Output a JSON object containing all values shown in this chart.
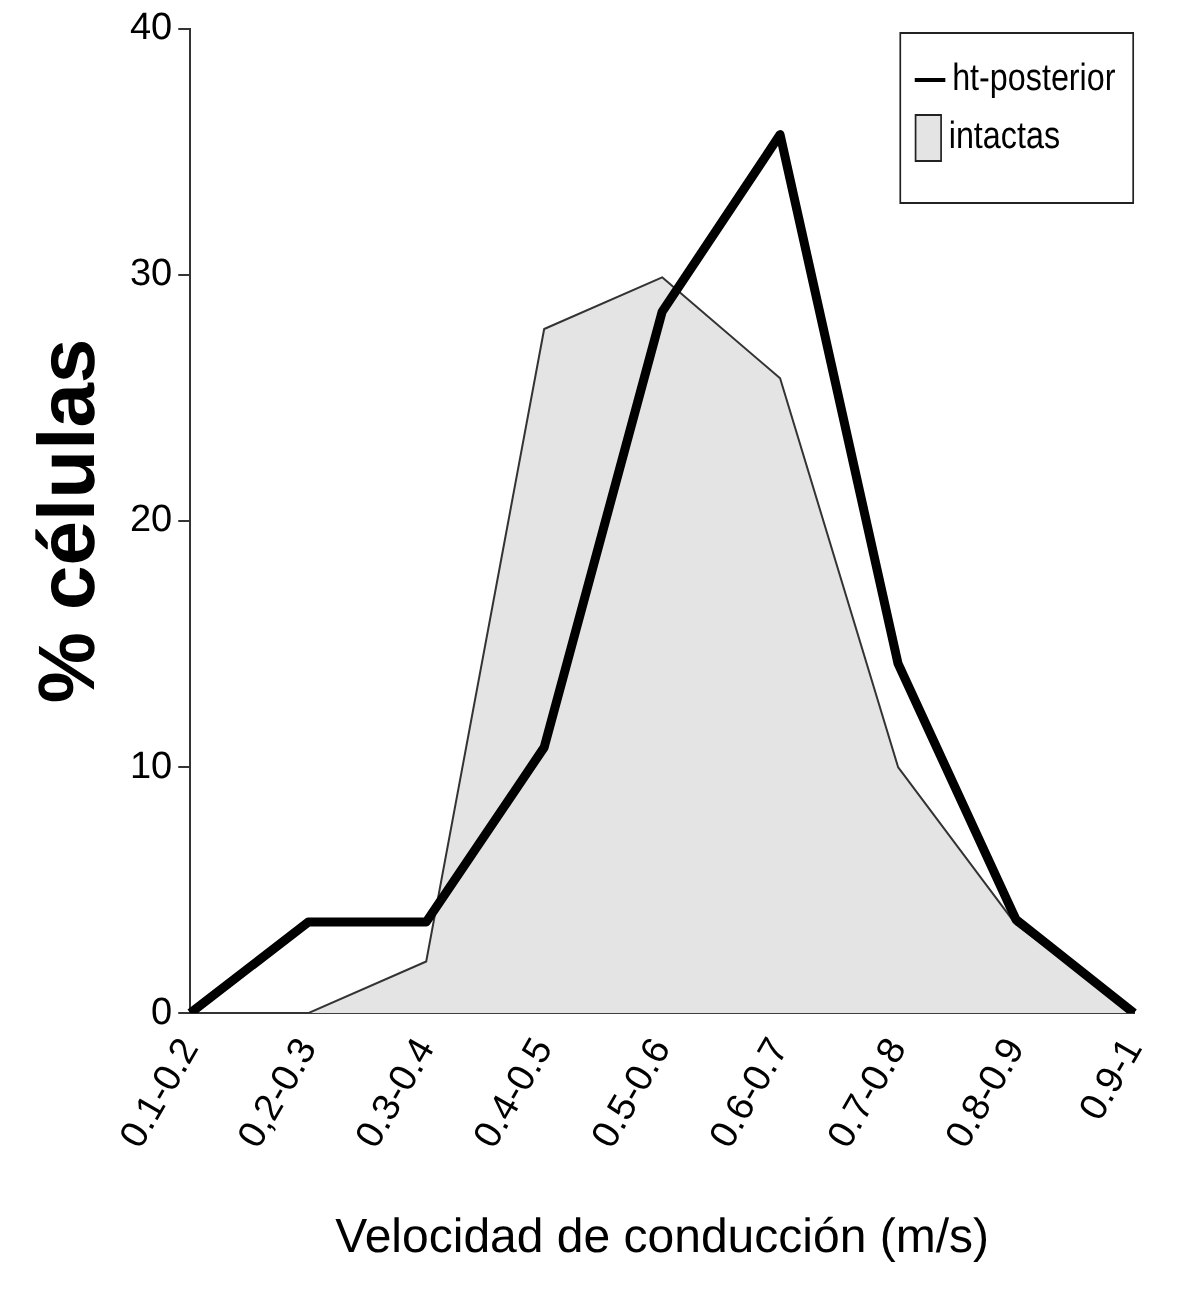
{
  "chart_data": {
    "type": "line",
    "xlabel": "Velocidad de conducción (m/s)",
    "ylabel": "% células",
    "categories": [
      "0.1-0.2",
      "0,2-0.3",
      "0.3-0.4",
      "0.4-0.5",
      "0.5-0.6",
      "0.6-0.7",
      "0.7-0.8",
      "0.8-0.9",
      "0.9-1"
    ],
    "ylim": [
      0,
      40
    ],
    "yticks": [
      0,
      10,
      20,
      30,
      40
    ],
    "grid": false,
    "legend": "top right",
    "marker": "none",
    "series": [
      {
        "name": "ht-posterior",
        "color": "#000000",
        "values": [
          0,
          3.7,
          3.7,
          10.8,
          28.5,
          35.7,
          14.2,
          3.8,
          0
        ]
      },
      {
        "name": "intactas",
        "type": "area",
        "color": "#e4e4e4",
        "values": [
          null,
          0,
          2.1,
          27.8,
          29.9,
          25.8,
          10,
          3.6,
          0
        ]
      }
    ]
  }
}
